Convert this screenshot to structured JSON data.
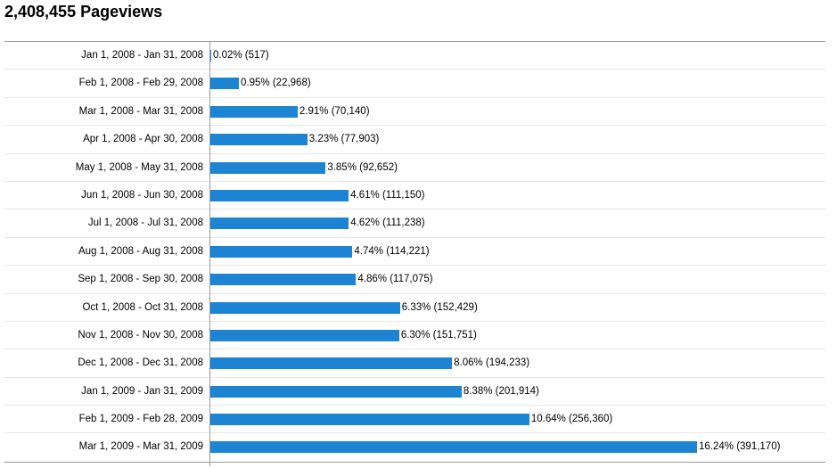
{
  "title": "2,408,455 Pageviews",
  "colors": {
    "bar": "#1d84d4",
    "rule": "#999999",
    "row_divider": "#e6e6e6"
  },
  "chart_data": {
    "type": "bar",
    "orientation": "horizontal",
    "title": "2,408,455 Pageviews",
    "categories": [
      "Jan 1, 2008 - Jan 31, 2008",
      "Feb 1, 2008 - Feb 29, 2008",
      "Mar 1, 2008 - Mar 31, 2008",
      "Apr 1, 2008 - Apr 30, 2008",
      "May 1, 2008 - May 31, 2008",
      "Jun 1, 2008 - Jun 30, 2008",
      "Jul 1, 2008 - Jul 31, 2008",
      "Aug 1, 2008 - Aug 31, 2008",
      "Sep 1, 2008 - Sep 30, 2008",
      "Oct 1, 2008 - Oct 31, 2008",
      "Nov 1, 2008 - Nov 30, 2008",
      "Dec 1, 2008 - Dec 31, 2008",
      "Jan 1, 2009 - Jan 31, 2009",
      "Feb 1, 2009 - Feb 28, 2009",
      "Mar 1, 2009 - Mar 31, 2009"
    ],
    "values": [
      517,
      22968,
      70140,
      77903,
      92652,
      111150,
      111238,
      114221,
      117075,
      152429,
      151751,
      194233,
      201914,
      256360,
      391170
    ],
    "percents": [
      0.02,
      0.95,
      2.91,
      3.23,
      3.85,
      4.61,
      4.62,
      4.74,
      4.86,
      6.33,
      6.3,
      8.06,
      8.38,
      10.64,
      16.24
    ],
    "labels": [
      "0.02% (517)",
      "0.95% (22,968)",
      "2.91% (70,140)",
      "3.23% (77,903)",
      "3.85% (92,652)",
      "4.61% (111,150)",
      "4.62% (111,238)",
      "4.74% (114,221)",
      "4.86% (117,075)",
      "6.33% (152,429)",
      "6.30% (151,751)",
      "8.06% (194,233)",
      "8.38% (201,914)",
      "10.64% (256,360)",
      "16.24% (391,170)"
    ],
    "xlim": [
      0,
      391170
    ],
    "grid": false,
    "legend": "none"
  }
}
